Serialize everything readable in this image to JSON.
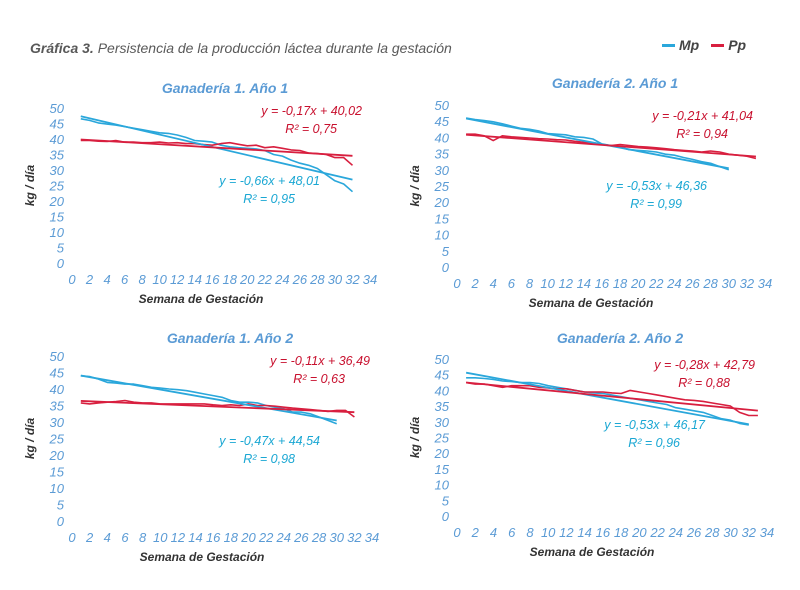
{
  "title": {
    "prefix": "Gráfica 3.",
    "text": "Persistencia de la producción láctea durante la gestación"
  },
  "legend": [
    {
      "name": "Mp",
      "color": "#2aa7db"
    },
    {
      "name": "Pp",
      "color": "#d81f3f"
    }
  ],
  "colors": {
    "mp": "#2aa7db",
    "pp": "#d81f3f",
    "panel_title": "#5b9bd5",
    "axis_text": "#5b9bd5",
    "axis_label": "#333333",
    "mp_eq": "#1aa7d3",
    "pp_eq": "#c8102e"
  },
  "chart_data": [
    {
      "type": "line",
      "title": "Ganadería 1. Año 1",
      "xlabel": "Semana de Gestación",
      "ylabel": "kg / día",
      "xlim": [
        0,
        34
      ],
      "ylim": [
        0,
        50
      ],
      "xticks": [
        "0",
        "2",
        "4",
        "6",
        "8",
        "10",
        "12",
        "14",
        "16",
        "18",
        "20",
        "22",
        "24",
        "26",
        "28",
        "30",
        "32",
        "34"
      ],
      "yticks": [
        "0",
        "5",
        "10",
        "15",
        "20",
        "25",
        "30",
        "35",
        "40",
        "45",
        "50"
      ],
      "series": [
        {
          "name": "Mp",
          "x": [
            1,
            2,
            3,
            4,
            5,
            6,
            7,
            8,
            9,
            10,
            11,
            12,
            13,
            14,
            15,
            16,
            17,
            18,
            19,
            20,
            21,
            22,
            23,
            24,
            25,
            26,
            27,
            28,
            29,
            30,
            31,
            32
          ],
          "values": [
            46.5,
            46,
            45.2,
            44.8,
            44.5,
            44,
            43.5,
            43,
            42.5,
            42,
            41.8,
            41.3,
            40.5,
            39.5,
            39.3,
            39,
            38,
            37.5,
            37.2,
            37,
            36.8,
            36.3,
            35,
            34.5,
            33.2,
            32.2,
            31.5,
            30.5,
            28.5,
            26.5,
            25.5,
            23
          ]
        },
        {
          "name": "Pp",
          "x": [
            1,
            2,
            3,
            4,
            5,
            6,
            7,
            8,
            9,
            10,
            11,
            12,
            13,
            14,
            15,
            16,
            17,
            18,
            19,
            20,
            21,
            22,
            23,
            24,
            25,
            26,
            27,
            28,
            29,
            30,
            31,
            32
          ],
          "values": [
            39.5,
            39.5,
            39.3,
            39.2,
            39.5,
            39,
            39,
            38.8,
            38.8,
            39,
            38.7,
            38.8,
            38.5,
            38.5,
            38.2,
            38,
            38.5,
            38.8,
            38.3,
            37.8,
            38,
            37.2,
            37.5,
            37,
            36.5,
            36.3,
            35.5,
            35.3,
            35,
            34,
            34,
            31.5
          ]
        }
      ],
      "trendlines": [
        {
          "series": "Mp",
          "slope": -0.66,
          "intercept": 48.01
        },
        {
          "series": "Pp",
          "slope": -0.17,
          "intercept": 40.02
        }
      ],
      "equations": [
        {
          "series": "Pp",
          "eq": "y = -0,17x + 40,02",
          "r2": "R² = 0,75"
        },
        {
          "series": "Mp",
          "eq": "y = -0,66x + 48,01",
          "r2": "R² = 0,95"
        }
      ]
    },
    {
      "type": "line",
      "title": "Ganadería 2. Año 1",
      "xlabel": "Semana de Gestación",
      "ylabel": "kg / día",
      "xlim": [
        0,
        34
      ],
      "ylim": [
        0,
        50
      ],
      "xticks": [
        "0",
        "2",
        "4",
        "6",
        "8",
        "10",
        "12",
        "14",
        "16",
        "18",
        "20",
        "22",
        "24",
        "26",
        "28",
        "30",
        "32",
        "34"
      ],
      "yticks": [
        "0",
        "5",
        "10",
        "15",
        "20",
        "25",
        "30",
        "35",
        "40",
        "45",
        "50"
      ],
      "series": [
        {
          "name": "Mp",
          "x": [
            1,
            2,
            3,
            4,
            5,
            6,
            7,
            8,
            9,
            10,
            11,
            12,
            13,
            14,
            15,
            16,
            17,
            18,
            19,
            20,
            21,
            22,
            23,
            24,
            25,
            26,
            27,
            28,
            29,
            30
          ],
          "values": [
            46,
            45.5,
            45.2,
            44.8,
            44.2,
            43.5,
            42.8,
            42.5,
            42,
            41.2,
            41,
            40.8,
            40.2,
            40,
            39.5,
            38,
            37.5,
            37,
            36.2,
            36,
            35.8,
            35.5,
            34.8,
            34.5,
            33.8,
            33.2,
            32.5,
            32,
            31,
            30
          ]
        },
        {
          "name": "Pp",
          "x": [
            1,
            2,
            3,
            4,
            5,
            6,
            7,
            8,
            9,
            10,
            11,
            12,
            13,
            14,
            15,
            16,
            17,
            18,
            19,
            20,
            21,
            22,
            23,
            24,
            25,
            26,
            27,
            28,
            29,
            30,
            31,
            32,
            33
          ],
          "values": [
            41,
            41,
            40.5,
            39,
            40.5,
            40.2,
            40,
            39.8,
            39.6,
            39.5,
            39.3,
            39.2,
            38.8,
            38.5,
            38.2,
            37.8,
            37.5,
            37.8,
            37.5,
            37.2,
            37,
            36.8,
            36.5,
            36.2,
            36,
            35.8,
            35.5,
            35.8,
            35.5,
            34.8,
            34.5,
            34.2,
            33.5
          ]
        }
      ],
      "trendlines": [
        {
          "series": "Mp",
          "slope": -0.53,
          "intercept": 46.36
        },
        {
          "series": "Pp",
          "slope": -0.21,
          "intercept": 41.04
        }
      ],
      "equations": [
        {
          "series": "Pp",
          "eq": "y = -0,21x + 41,04",
          "r2": "R² = 0,94"
        },
        {
          "series": "Mp",
          "eq": "y = -0,53x + 46,36",
          "r2": "R² = 0,99"
        }
      ]
    },
    {
      "type": "line",
      "title": "Ganadería 1. Año 2",
      "xlabel": "Semana de Gestación",
      "ylabel": "kg / día",
      "xlim": [
        0,
        34
      ],
      "ylim": [
        0,
        50
      ],
      "xticks": [
        "0",
        "2",
        "4",
        "6",
        "8",
        "10",
        "12",
        "14",
        "16",
        "18",
        "20",
        "22",
        "24",
        "26",
        "28",
        "30",
        "32",
        "34"
      ],
      "yticks": [
        "0",
        "5",
        "10",
        "15",
        "20",
        "25",
        "30",
        "35",
        "40",
        "45",
        "50"
      ],
      "series": [
        {
          "name": "Mp",
          "x": [
            1,
            2,
            3,
            4,
            5,
            6,
            7,
            8,
            9,
            10,
            11,
            12,
            13,
            14,
            15,
            16,
            17,
            18,
            19,
            20,
            21,
            22,
            23,
            24,
            25,
            26,
            27,
            28,
            29,
            30
          ],
          "values": [
            44,
            43.8,
            43,
            42,
            41.8,
            41.5,
            41.5,
            41,
            40.5,
            40.3,
            40,
            39.8,
            39.5,
            39,
            38.5,
            38,
            37.5,
            36.5,
            36,
            36,
            35.8,
            35,
            34.5,
            34,
            33,
            33,
            32.5,
            31.5,
            30.5,
            29.5
          ]
        },
        {
          "name": "Pp",
          "x": [
            1,
            2,
            3,
            4,
            5,
            6,
            7,
            8,
            9,
            10,
            11,
            12,
            13,
            14,
            15,
            16,
            17,
            18,
            19,
            20,
            21,
            22,
            23,
            24,
            25,
            26,
            27,
            28,
            29,
            30,
            31,
            32
          ],
          "values": [
            35.8,
            35.5,
            35.8,
            36,
            36.2,
            36.5,
            36,
            35.8,
            35.8,
            35.5,
            35.5,
            35.5,
            35.5,
            35.5,
            35.5,
            35.2,
            35,
            35.2,
            35,
            35.5,
            35,
            35,
            34.8,
            34.5,
            34.2,
            34,
            33.8,
            33.5,
            33.2,
            33.5,
            33.5,
            31.5
          ]
        }
      ],
      "trendlines": [
        {
          "series": "Mp",
          "slope": -0.47,
          "intercept": 44.54
        },
        {
          "series": "Pp",
          "slope": -0.11,
          "intercept": 36.49
        }
      ],
      "equations": [
        {
          "series": "Pp",
          "eq": "y = -0,11x + 36,49",
          "r2": "R² = 0,63"
        },
        {
          "series": "Mp",
          "eq": "y = -0,47x + 44,54",
          "r2": "R² = 0,98"
        }
      ]
    },
    {
      "type": "line",
      "title": "Ganadería 2. Año 2",
      "xlabel": "Semana de Gestación",
      "ylabel": "kg / día",
      "xlim": [
        0,
        34
      ],
      "ylim": [
        0,
        50
      ],
      "xticks": [
        "0",
        "2",
        "4",
        "6",
        "8",
        "10",
        "12",
        "14",
        "16",
        "18",
        "20",
        "22",
        "24",
        "26",
        "28",
        "30",
        "32",
        "34"
      ],
      "yticks": [
        "0",
        "5",
        "10",
        "15",
        "20",
        "25",
        "30",
        "35",
        "40",
        "45",
        "50"
      ],
      "series": [
        {
          "name": "Mp",
          "x": [
            1,
            2,
            3,
            4,
            5,
            6,
            7,
            8,
            9,
            10,
            11,
            12,
            13,
            14,
            15,
            16,
            17,
            18,
            19,
            20,
            21,
            22,
            23,
            24,
            25,
            26,
            27,
            28,
            29,
            30,
            31,
            32
          ],
          "values": [
            44,
            44,
            43.8,
            43.5,
            43,
            42.8,
            42.5,
            42.5,
            42.2,
            41.5,
            41,
            40.5,
            40,
            39.5,
            39.2,
            39,
            38.5,
            38,
            37.5,
            37,
            36.5,
            36,
            35.5,
            34.5,
            34,
            33.5,
            33,
            32,
            31,
            30.5,
            29.5,
            29
          ]
        },
        {
          "name": "Pp",
          "x": [
            1,
            2,
            3,
            4,
            5,
            6,
            7,
            8,
            9,
            10,
            11,
            12,
            13,
            14,
            15,
            16,
            17,
            18,
            19,
            20,
            21,
            22,
            23,
            24,
            25,
            26,
            27,
            28,
            29,
            30,
            31,
            32,
            33
          ],
          "values": [
            42.5,
            42,
            42,
            41.5,
            41,
            41.5,
            41.5,
            41.5,
            41,
            40.8,
            40.5,
            40.5,
            40,
            39.5,
            39.5,
            39.5,
            39.2,
            39,
            40,
            39.5,
            39,
            38.5,
            38,
            37.5,
            37,
            36.8,
            36.5,
            36,
            35.5,
            35,
            33,
            32,
            32
          ]
        }
      ],
      "trendlines": [
        {
          "series": "Mp",
          "slope": -0.53,
          "intercept": 46.17
        },
        {
          "series": "Pp",
          "slope": -0.28,
          "intercept": 42.79
        }
      ],
      "equations": [
        {
          "series": "Pp",
          "eq": "y = -0,28x + 42,79",
          "r2": "R² = 0,88"
        },
        {
          "series": "Mp",
          "eq": "y = -0,53x + 46,17",
          "r2": "R² = 0,96"
        }
      ]
    }
  ]
}
